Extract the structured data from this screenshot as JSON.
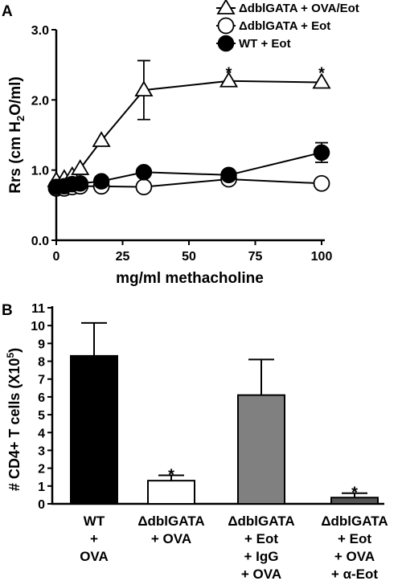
{
  "chart_data": [
    {
      "panel_label": "A",
      "type": "line",
      "xlabel": "mg/ml methacholine",
      "ylabel": "Rrs (cm H2O/ml)",
      "ylabel_parts": {
        "pre": "Rrs (cm H",
        "sub": "2",
        "post": "O/ml)"
      },
      "xlim": [
        0,
        100
      ],
      "ylim": [
        0,
        3
      ],
      "x_ticks": [
        "0",
        "25",
        "50",
        "75",
        "100"
      ],
      "y_ticks": [
        "0.0",
        "1.0",
        "2.0",
        "3.0"
      ],
      "legend_position": "top-right",
      "series": [
        {
          "name": "ΔdblGATA + OVA/Eot",
          "marker": "open-triangle",
          "x": [
            0,
            3,
            6,
            9,
            17,
            33,
            65,
            100
          ],
          "y": [
            0.85,
            0.88,
            0.92,
            1.02,
            1.42,
            2.14,
            2.27,
            2.25
          ],
          "err": [
            0.05,
            0.05,
            0.05,
            0.05,
            0.05,
            0.42,
            0.05,
            0.05
          ]
        },
        {
          "name": "ΔdblGATA + Eot",
          "marker": "open-circle",
          "x": [
            0,
            3,
            6,
            9,
            17,
            33,
            65,
            100
          ],
          "y": [
            0.74,
            0.74,
            0.76,
            0.77,
            0.77,
            0.76,
            0.87,
            0.81
          ],
          "err": [
            0.03,
            0.03,
            0.03,
            0.03,
            0.03,
            0.03,
            0.03,
            0.03
          ]
        },
        {
          "name": "WT + Eot",
          "marker": "filled-circle",
          "x": [
            0,
            3,
            6,
            9,
            17,
            33,
            65,
            100
          ],
          "y": [
            0.76,
            0.77,
            0.8,
            0.81,
            0.84,
            0.97,
            0.93,
            1.25
          ],
          "err": [
            0.03,
            0.03,
            0.03,
            0.03,
            0.03,
            0.05,
            0.04,
            0.14
          ]
        }
      ],
      "annotations": [
        {
          "text": "*",
          "x": 65,
          "y": 2.42
        },
        {
          "text": "*",
          "x": 100,
          "y": 2.42
        }
      ]
    },
    {
      "panel_label": "B",
      "type": "bar",
      "ylabel": "# CD4+ T cells (X105)",
      "ylabel_parts": {
        "pre": "# CD4+ T cells (X10",
        "sup": "5",
        "post": ")"
      },
      "ylim": [
        0,
        11
      ],
      "y_ticks": [
        "0",
        "1",
        "2",
        "3",
        "4",
        "5",
        "6",
        "7",
        "8",
        "9",
        "10",
        "11"
      ],
      "categories": [
        [
          "WT",
          "+",
          "OVA"
        ],
        [
          "ΔdblGATA",
          "+ OVA"
        ],
        [
          "ΔdblGATA",
          "+ Eot",
          "+ IgG",
          "+ OVA"
        ],
        [
          "ΔdblGATA",
          "+ Eot",
          "+ OVA",
          "+ α-Eot"
        ]
      ],
      "values": [
        8.3,
        1.3,
        6.1,
        0.35
      ],
      "errors": [
        1.85,
        0.3,
        2.0,
        0.25
      ],
      "bar_colors": [
        "#000000",
        "#ffffff",
        "#808080",
        "#555555"
      ],
      "significance": [
        "",
        "*",
        "",
        "*"
      ]
    }
  ]
}
